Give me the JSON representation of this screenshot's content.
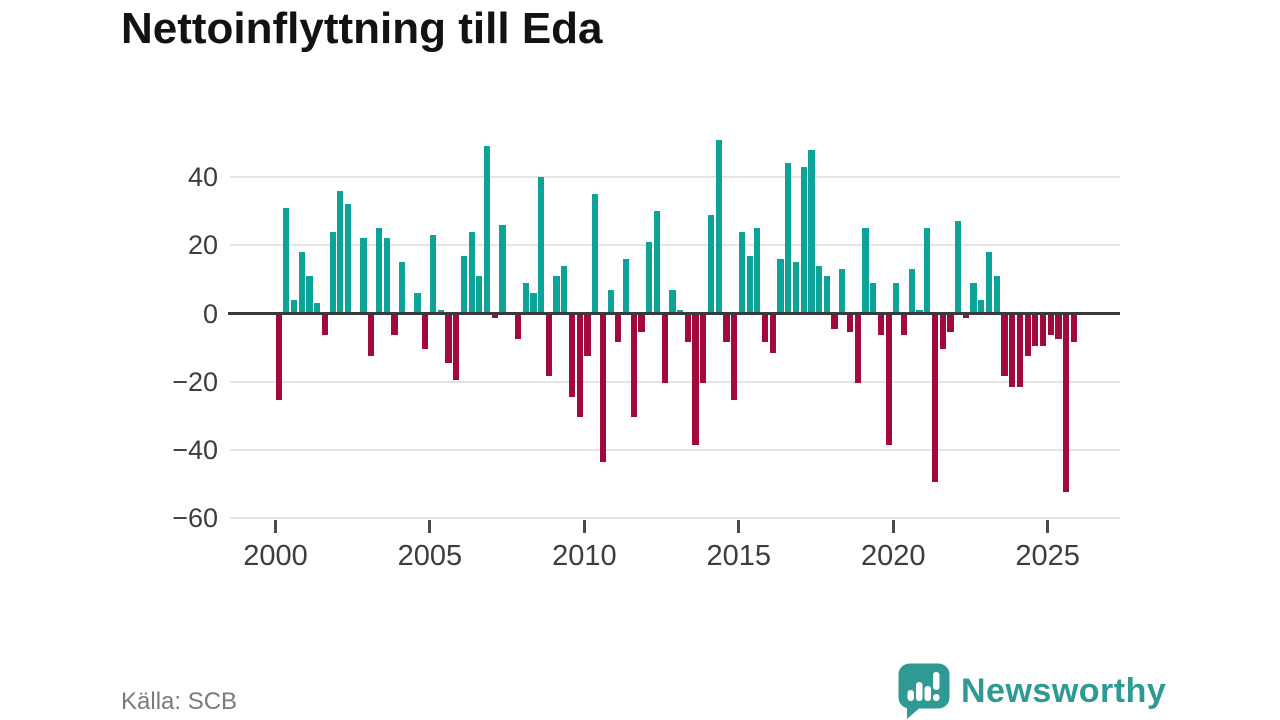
{
  "title": "Nettoinflyttning till Eda",
  "source": "Källa: SCB",
  "logo": {
    "text": "Newsworthy"
  },
  "colors": {
    "positive": "#0da399",
    "negative": "#a20a3d",
    "axis": "#3a3a3a",
    "grid": "#e4e4e4",
    "tick_text": "#3d3d3d",
    "source_text": "#7b7b7b",
    "brand": "#2f9a94"
  },
  "chart_data": {
    "type": "bar",
    "title": "Nettoinflyttning till Eda",
    "frequency": "quarterly",
    "start_year": 2000,
    "start_quarter": 1,
    "values": [
      -25,
      31,
      4,
      18,
      11,
      3,
      -6,
      24,
      36,
      32,
      0,
      22,
      -12,
      25,
      22,
      -6,
      15,
      0,
      6,
      -10,
      23,
      1,
      -14,
      -19,
      17,
      24,
      11,
      49,
      -1,
      26,
      0,
      -7,
      9,
      6,
      40,
      -18,
      11,
      14,
      -24,
      -30,
      -12,
      35,
      -43,
      7,
      -8,
      16,
      -30,
      -5,
      21,
      30,
      -20,
      7,
      1,
      -8,
      -38,
      -20,
      29,
      51,
      -8,
      -25,
      24,
      17,
      25,
      -8,
      -11,
      16,
      44,
      15,
      43,
      48,
      14,
      11,
      -4,
      13,
      -5,
      -20,
      25,
      9,
      -6,
      -38,
      9,
      -6,
      13,
      1,
      25,
      -49,
      -10,
      -5,
      27,
      -1,
      9,
      4,
      18,
      11,
      -18,
      -21,
      -21,
      -12,
      -9,
      -9,
      -6,
      -7,
      -52,
      -8
    ],
    "x_ticks": [
      {
        "label": "2000",
        "year": 2000
      },
      {
        "label": "2005",
        "year": 2005
      },
      {
        "label": "2010",
        "year": 2010
      },
      {
        "label": "2015",
        "year": 2015
      },
      {
        "label": "2020",
        "year": 2020
      },
      {
        "label": "2025",
        "year": 2025
      }
    ],
    "y_ticks": [
      {
        "label": "40",
        "value": 40
      },
      {
        "label": "20",
        "value": 20
      },
      {
        "label": "0",
        "value": 0
      },
      {
        "label": "−20",
        "value": -20
      },
      {
        "label": "−40",
        "value": -40
      },
      {
        "label": "−60",
        "value": -60
      }
    ],
    "ylim": [
      -60,
      52
    ],
    "grid": true,
    "legend": false,
    "bar_color_rule": "positive values teal, negative values crimson"
  }
}
